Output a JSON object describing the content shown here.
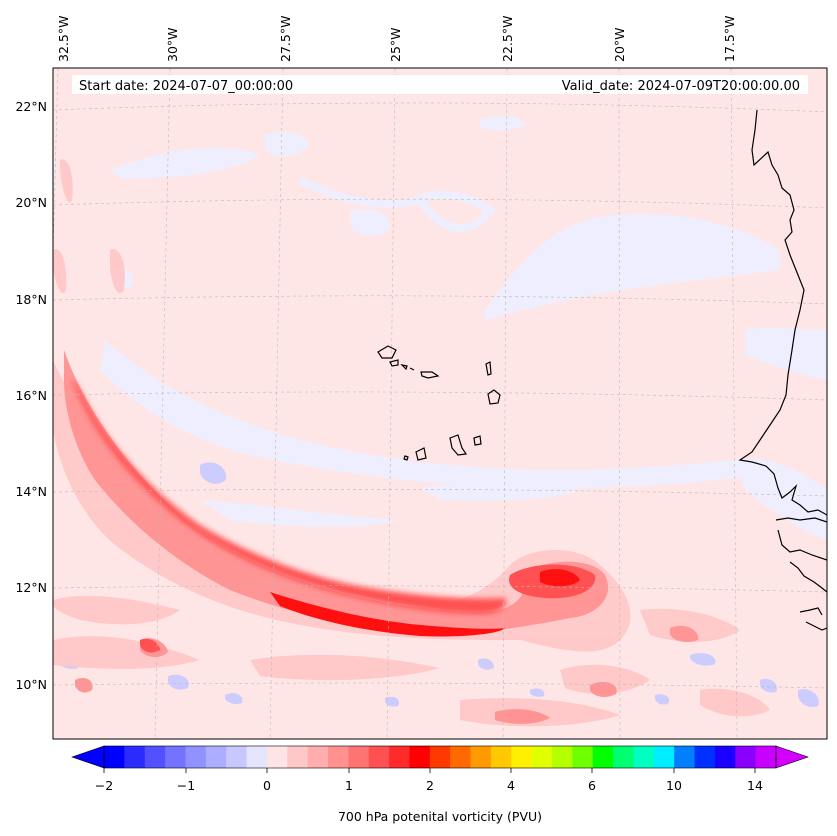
{
  "header": {
    "start_date": "Start date: 2024-07-07_00:00:00",
    "valid_date": "Valid_date: 2024-07-09T20:00:00.00"
  },
  "map": {
    "lon_labels": [
      "32.5°W",
      "30°W",
      "27.5°W",
      "25°W",
      "22.5°W",
      "20°W",
      "17.5°W"
    ],
    "lat_labels": [
      "22°N",
      "20°N",
      "18°N",
      "16°N",
      "14°N",
      "12°N",
      "10°N"
    ]
  },
  "colorbar": {
    "tick_labels": [
      "−2",
      "−1",
      "0",
      "1",
      "2",
      "4",
      "6",
      "10",
      "14"
    ],
    "label": "700 hPa potenital vorticity (PVU)",
    "colors": [
      "#0000ff",
      "#2b2bff",
      "#5151ff",
      "#7373ff",
      "#9191ff",
      "#adadff",
      "#c8c8ff",
      "#e4e4ff",
      "#ffe4e4",
      "#ffc8c8",
      "#ffadad",
      "#ff9191",
      "#ff7373",
      "#ff5151",
      "#ff2b2b",
      "#ff0000",
      "#ff3a00",
      "#ff6a00",
      "#ff9a00",
      "#ffc800",
      "#fff000",
      "#e0ff00",
      "#b4ff00",
      "#6eff00",
      "#00ff00",
      "#00ff70",
      "#00ffc0",
      "#00ecff",
      "#0080ff",
      "#0030ff",
      "#1a00ff",
      "#8a00ff",
      "#c800ff"
    ],
    "under_color": "#0000ff",
    "over_color": "#d400ff"
  }
}
